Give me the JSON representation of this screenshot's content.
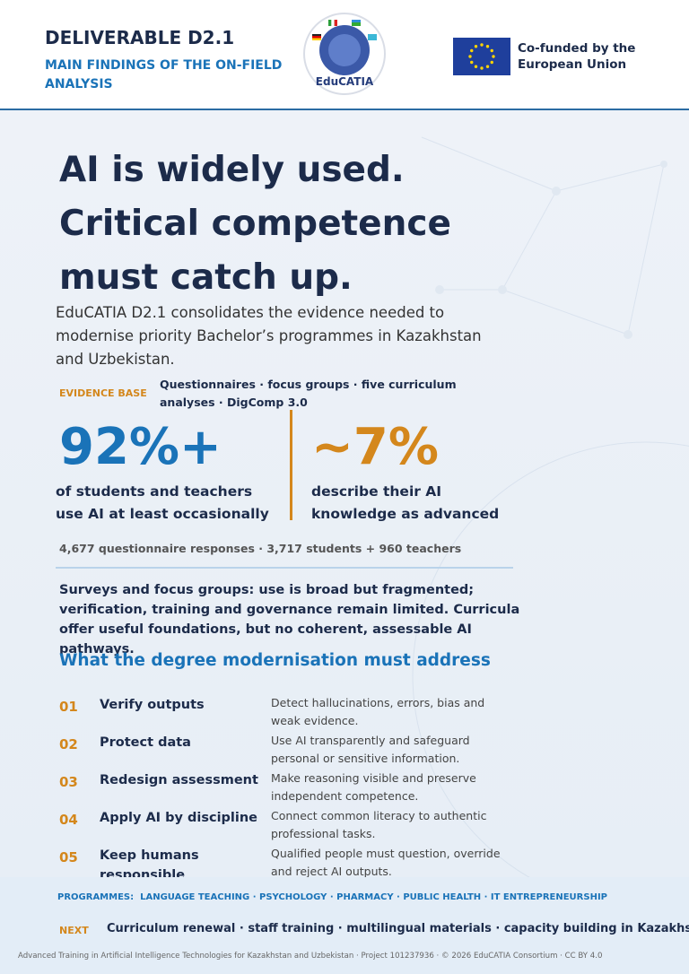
{
  "header": {
    "title": "DELIVERABLE D2.1",
    "subtitle": "MAIN FINDINGS OF THE ON-FIELD ANALYSIS",
    "logo_text": "EduCATIA",
    "eu_label": "Co-funded by the European Union"
  },
  "hero": {
    "headline": [
      "AI is widely used.",
      "Critical competence",
      "must catch up."
    ],
    "intro": "EduCATIA D2.1 consolidates the evidence needed to modernise priority Bachelor’s programmes in Kazakhstan and Uzbekistan."
  },
  "evidence": {
    "label": "EVIDENCE BASE",
    "sources": "Questionnaires · focus groups · five curriculum analyses · DigComp 3.0"
  },
  "stats": [
    {
      "value": "92%+",
      "text": "of students and teachers use AI at least occasionally"
    },
    {
      "value": "~7%",
      "text": "describe their AI knowledge as advanced"
    }
  ],
  "sample": "4,677 questionnaire responses · 3,717 students + 960 teachers",
  "summary": "Surveys and focus groups: use is broad but fragmented; verification, training and governance remain limited. Curricula offer useful foundations, but no coherent, assessable AI pathways.",
  "actions": {
    "title": "What the degree modernisation must address",
    "items": [
      {
        "number": "01",
        "title": "Verify outputs",
        "description": "Detect hallucinations, errors, bias and weak evidence."
      },
      {
        "number": "02",
        "title": "Protect data",
        "description": "Use AI transparently and safeguard personal or sensitive information."
      },
      {
        "number": "03",
        "title": "Redesign assessment",
        "description": "Make reasoning visible and preserve independent competence."
      },
      {
        "number": "04",
        "title": "Apply AI by discipline",
        "description": "Connect common literacy to authentic professional tasks."
      },
      {
        "number": "05",
        "title": "Keep humans responsible",
        "description": "Qualified people must question, override and reject AI outputs."
      }
    ]
  },
  "programmes": {
    "label": "PROGRAMMES:",
    "list": "LANGUAGE TEACHING · PSYCHOLOGY · PHARMACY · PUBLIC HEALTH · IT ENTREPRENEURSHIP"
  },
  "next": {
    "label": "NEXT",
    "text": "Curriculum renewal · staff training · multilingual materials · capacity building in Kazakhstan"
  },
  "footer": "Advanced Training in Artificial Intelligence Technologies for Kazakhstan and Uzbekistan · Project 101237936 · © 2026 EduCATIA Consortium · CC BY 4.0"
}
